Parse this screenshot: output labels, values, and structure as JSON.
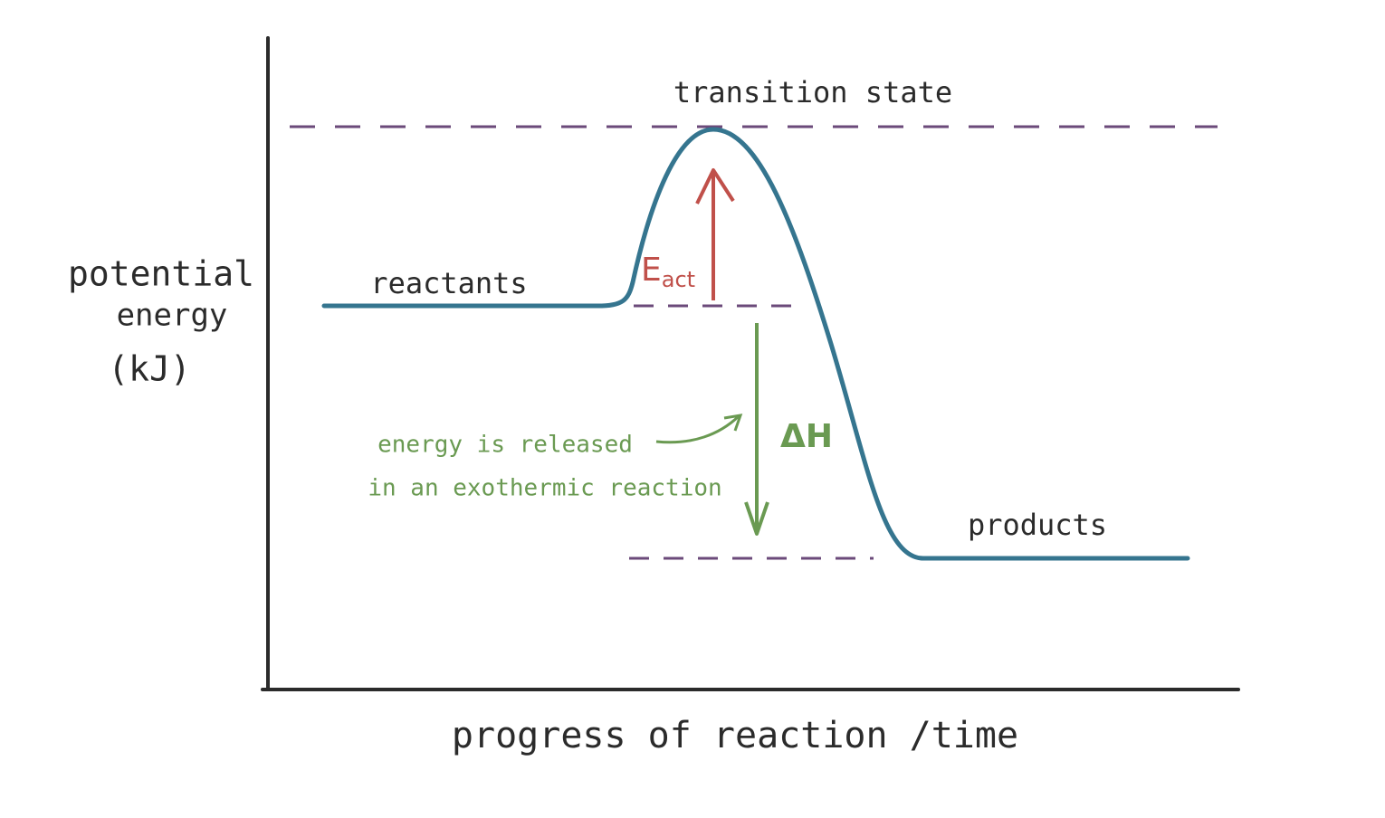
{
  "diagram": {
    "y_axis_label": [
      "potential",
      "energy",
      "(kJ)"
    ],
    "x_axis_label": "progress of reaction /time",
    "transition_state_label": "transition state",
    "reactants_label": "reactants",
    "products_label": "products",
    "activation_energy_label": {
      "symbol": "E",
      "subscript": "act"
    },
    "enthalpy_label": "ΔH",
    "annotation": [
      "energy is released",
      "in an exothermic reaction"
    ]
  }
}
